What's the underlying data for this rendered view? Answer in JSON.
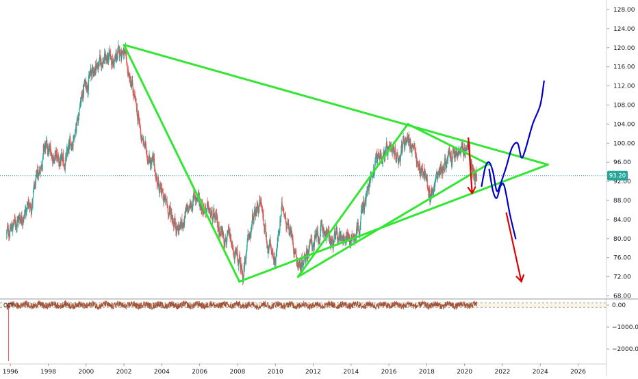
{
  "chart_data": {
    "type": "line",
    "price_pane": {
      "y_ticks": [
        "128.00",
        "124.00",
        "120.00",
        "116.00",
        "112.00",
        "108.00",
        "104.00",
        "100.00",
        "96.00",
        "92.00",
        "88.00",
        "84.00",
        "80.00",
        "76.00",
        "72.00",
        "68.00"
      ],
      "y_tick_values": [
        128,
        124,
        120,
        116,
        112,
        108,
        104,
        100,
        96,
        92,
        88,
        84,
        80,
        76,
        72,
        68
      ],
      "ylim": [
        67.5,
        130
      ],
      "last_price": {
        "label": "93.20",
        "value": 93.2,
        "color": "#26a69a"
      },
      "series": [
        {
          "type": "candlestick",
          "up_color": "#26a69a",
          "down_color": "#ef5350",
          "anchors": [
            {
              "x": 1995.8,
              "y": 81
            },
            {
              "x": 1996.6,
              "y": 85
            },
            {
              "x": 1997.1,
              "y": 87
            },
            {
              "x": 1997.8,
              "y": 99
            },
            {
              "x": 1998.4,
              "y": 97
            },
            {
              "x": 1998.8,
              "y": 95
            },
            {
              "x": 1999.3,
              "y": 101
            },
            {
              "x": 1999.9,
              "y": 112
            },
            {
              "x": 2000.5,
              "y": 116
            },
            {
              "x": 2001.0,
              "y": 118
            },
            {
              "x": 2001.5,
              "y": 117
            },
            {
              "x": 2001.9,
              "y": 120
            },
            {
              "x": 2002.5,
              "y": 110
            },
            {
              "x": 2003.0,
              "y": 100
            },
            {
              "x": 2003.5,
              "y": 96
            },
            {
              "x": 2004.0,
              "y": 89
            },
            {
              "x": 2004.5,
              "y": 85
            },
            {
              "x": 2004.9,
              "y": 82
            },
            {
              "x": 2005.3,
              "y": 85
            },
            {
              "x": 2005.8,
              "y": 89
            },
            {
              "x": 2006.4,
              "y": 86
            },
            {
              "x": 2006.9,
              "y": 83
            },
            {
              "x": 2007.5,
              "y": 80
            },
            {
              "x": 2007.9,
              "y": 76
            },
            {
              "x": 2008.3,
              "y": 73
            },
            {
              "x": 2008.7,
              "y": 82
            },
            {
              "x": 2009.2,
              "y": 88
            },
            {
              "x": 2009.6,
              "y": 79
            },
            {
              "x": 2010.0,
              "y": 76
            },
            {
              "x": 2010.4,
              "y": 87
            },
            {
              "x": 2010.9,
              "y": 80
            },
            {
              "x": 2011.3,
              "y": 74
            },
            {
              "x": 2011.7,
              "y": 78
            },
            {
              "x": 2012.2,
              "y": 80
            },
            {
              "x": 2012.6,
              "y": 82
            },
            {
              "x": 2013.0,
              "y": 79
            },
            {
              "x": 2013.5,
              "y": 81
            },
            {
              "x": 2014.0,
              "y": 80
            },
            {
              "x": 2014.4,
              "y": 83
            },
            {
              "x": 2014.9,
              "y": 90
            },
            {
              "x": 2015.3,
              "y": 97
            },
            {
              "x": 2015.8,
              "y": 98
            },
            {
              "x": 2016.2,
              "y": 97
            },
            {
              "x": 2016.6,
              "y": 98
            },
            {
              "x": 2016.95,
              "y": 102
            },
            {
              "x": 2017.4,
              "y": 97
            },
            {
              "x": 2017.9,
              "y": 93
            },
            {
              "x": 2018.2,
              "y": 89
            },
            {
              "x": 2018.6,
              "y": 94
            },
            {
              "x": 2019.0,
              "y": 96
            },
            {
              "x": 2019.4,
              "y": 97
            },
            {
              "x": 2019.8,
              "y": 98
            },
            {
              "x": 2020.2,
              "y": 99
            },
            {
              "x": 2020.4,
              "y": 95
            },
            {
              "x": 2020.65,
              "y": 93
            }
          ]
        }
      ],
      "drawings": [
        {
          "kind": "green-line",
          "color": "#33e633",
          "points": [
            [
              2002.0,
              120.6
            ],
            [
              2008.1,
              71.0
            ]
          ]
        },
        {
          "kind": "green-line",
          "color": "#33e633",
          "points": [
            [
              2002.0,
              120.6
            ],
            [
              2024.4,
              95.5
            ]
          ]
        },
        {
          "kind": "green-line",
          "color": "#33e633",
          "points": [
            [
              2008.1,
              71.0
            ],
            [
              2024.4,
              95.5
            ]
          ]
        },
        {
          "kind": "green-line",
          "color": "#33e633",
          "points": [
            [
              2011.2,
              72.0
            ],
            [
              2017.0,
              104.0
            ]
          ]
        },
        {
          "kind": "green-line",
          "color": "#33e633",
          "points": [
            [
              2011.2,
              72.0
            ],
            [
              2021.2,
              95.5
            ]
          ]
        },
        {
          "kind": "green-line",
          "color": "#33e633",
          "points": [
            [
              2017.0,
              104.0
            ],
            [
              2021.3,
              95.5
            ]
          ]
        },
        {
          "kind": "red-arrow",
          "color": "#e00000",
          "points": [
            [
              2020.2,
              101.2
            ],
            [
              2020.4,
              89.5
            ]
          ],
          "head": "down"
        },
        {
          "kind": "red-arrow",
          "color": "#e00000",
          "points": [
            [
              2022.2,
              85.5
            ],
            [
              2023.0,
              71.0
            ]
          ],
          "head": "down"
        },
        {
          "kind": "blue-path",
          "color": "#0000cc",
          "points": [
            [
              2020.9,
              91
            ],
            [
              2021.1,
              95
            ],
            [
              2021.3,
              96
            ],
            [
              2021.5,
              94
            ],
            [
              2021.7,
              90
            ],
            [
              2021.9,
              91.5
            ],
            [
              2022.2,
              95
            ],
            [
              2022.5,
              99
            ],
            [
              2022.8,
              100
            ],
            [
              2023.0,
              97
            ],
            [
              2023.2,
              98.5
            ],
            [
              2023.6,
              104
            ],
            [
              2024.0,
              108
            ],
            [
              2024.2,
              113
            ]
          ]
        },
        {
          "kind": "blue-path",
          "color": "#0000cc",
          "points": [
            [
              2021.3,
              94.5
            ],
            [
              2021.5,
              90
            ],
            [
              2021.7,
              88.5
            ],
            [
              2021.9,
              91
            ],
            [
              2022.1,
              91
            ],
            [
              2022.4,
              85
            ],
            [
              2022.7,
              80
            ]
          ]
        }
      ]
    },
    "cci_pane": {
      "title": "CCI",
      "y_ticks": [
        "0.00",
        "−1000.00",
        "−2000.00"
      ],
      "y_tick_values": [
        0,
        -1000,
        -2000
      ],
      "ylim": [
        -2650,
        250
      ],
      "band_levels": [
        100,
        -100
      ],
      "color": "#a1543a",
      "spike": {
        "x": 1995.9,
        "value": -2550
      }
    },
    "x_ticks": [
      "1996",
      "1998",
      "2000",
      "2002",
      "2004",
      "2006",
      "2008",
      "2010",
      "2012",
      "2014",
      "2016",
      "2018",
      "2020",
      "2022",
      "2024",
      "2026"
    ],
    "x_tick_values": [
      1996,
      1998,
      2000,
      2002,
      2004,
      2006,
      2008,
      2010,
      2012,
      2014,
      2016,
      2018,
      2020,
      2022,
      2024,
      2026
    ],
    "xlim": [
      1995.45,
      2027.5
    ]
  }
}
